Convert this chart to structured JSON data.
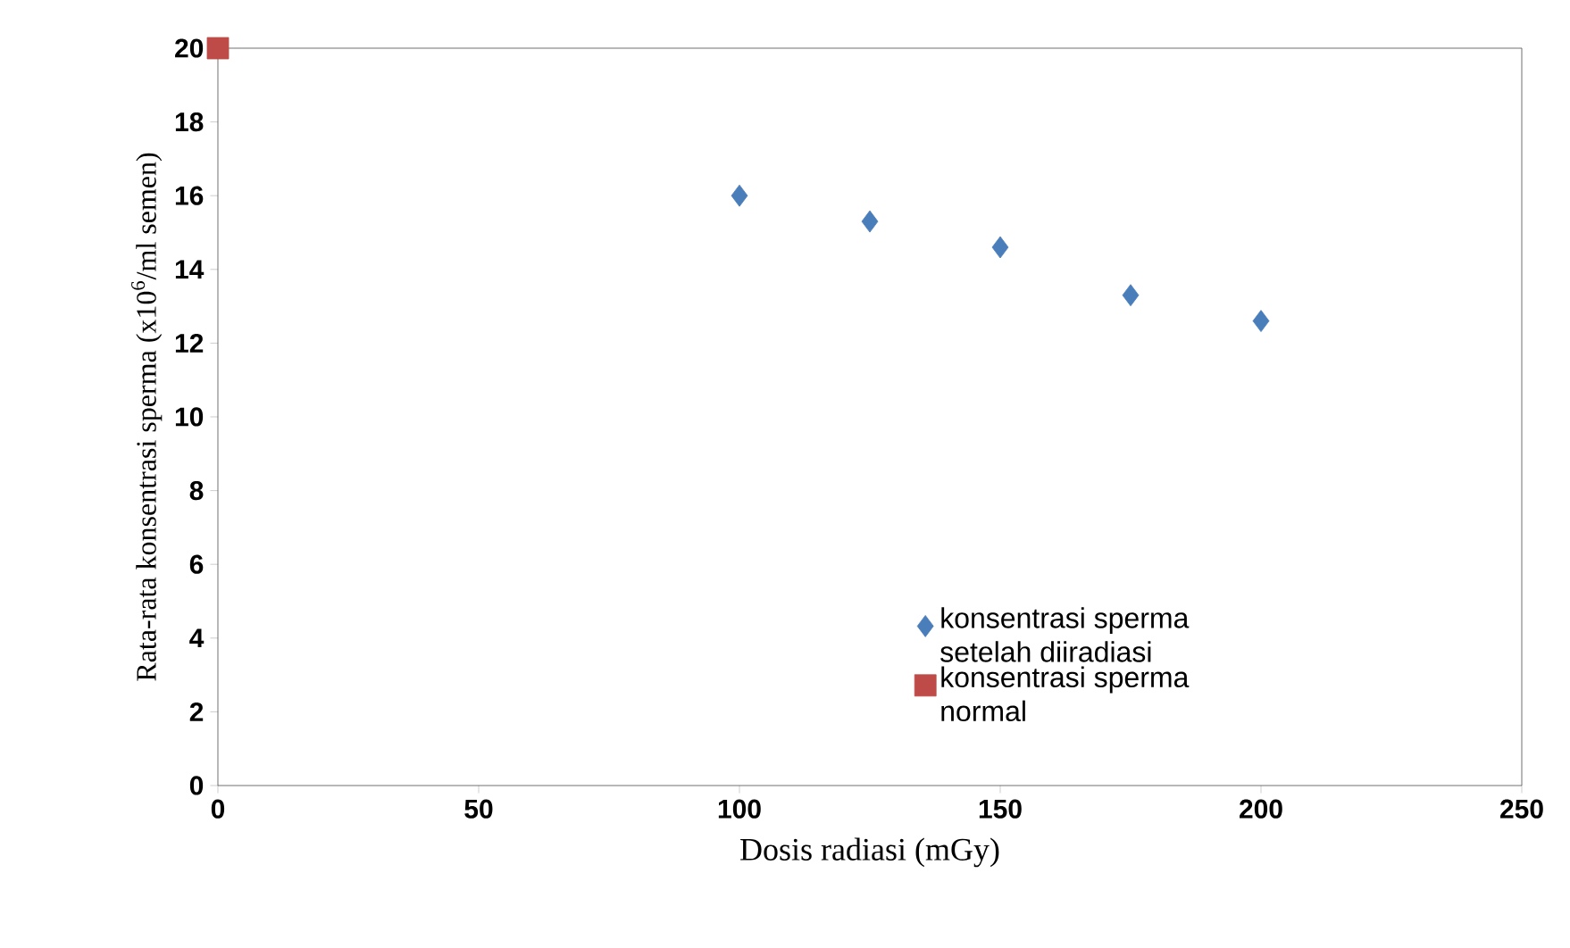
{
  "chart_data": {
    "type": "scatter",
    "xlabel": "Dosis radiasi (mGy)",
    "ylabel": "Rata-rata konsentrasi sperma (x10$^{6}$/ml semen)",
    "xlim": [
      0,
      250
    ],
    "xticks": [
      0,
      50,
      100,
      150,
      200,
      250
    ],
    "ylim": [
      0,
      20
    ],
    "yticks": [
      0,
      2,
      4,
      6,
      8,
      10,
      12,
      14,
      16,
      18,
      20
    ],
    "grid": false,
    "legend": "bottom right",
    "series": [
      {
        "name": "konsentrasi sperma setelah diiradiasi",
        "color": "#4a7ebb",
        "marker": "diamond",
        "x": [
          100,
          125,
          150,
          175,
          200
        ],
        "values": [
          16.0,
          15.3,
          14.6,
          13.3,
          12.6
        ]
      },
      {
        "name": "konsentrasi sperma normal",
        "color": "#be4b48",
        "marker": "square",
        "x": [
          0
        ],
        "values": [
          20
        ]
      }
    ]
  }
}
